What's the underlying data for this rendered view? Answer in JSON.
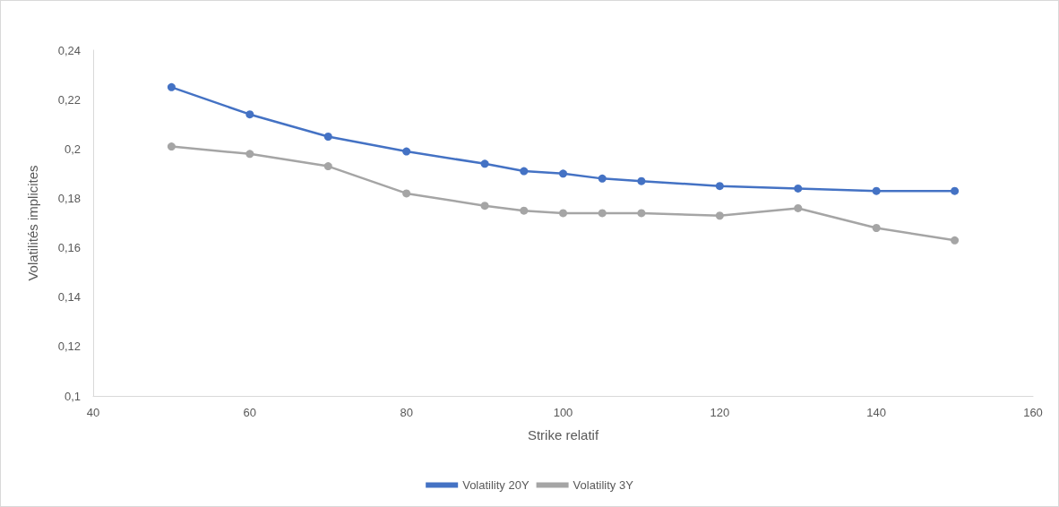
{
  "chart_data": {
    "type": "line",
    "xlabel": "Strike relatif",
    "ylabel": "Volatilités implicites",
    "x": [
      50,
      60,
      70,
      80,
      90,
      95,
      100,
      105,
      110,
      120,
      130,
      140,
      150
    ],
    "series": [
      {
        "name": "Volatility 20Y",
        "color": "#4472c4",
        "values": [
          0.225,
          0.214,
          0.205,
          0.199,
          0.194,
          0.191,
          0.19,
          0.188,
          0.187,
          0.185,
          0.184,
          0.183,
          0.183
        ]
      },
      {
        "name": "Volatility 3Y",
        "color": "#a5a5a5",
        "values": [
          0.201,
          0.198,
          0.193,
          0.182,
          0.177,
          0.175,
          0.174,
          0.174,
          0.174,
          0.173,
          0.176,
          0.168,
          0.163
        ]
      }
    ],
    "xlim": [
      40,
      160
    ],
    "xticks": [
      40,
      60,
      80,
      100,
      120,
      140,
      160
    ],
    "ylim": [
      0.1,
      0.24
    ],
    "yticks": [
      {
        "value": 0.1,
        "label": "0,1"
      },
      {
        "value": 0.12,
        "label": "0,12"
      },
      {
        "value": 0.14,
        "label": "0,14"
      },
      {
        "value": 0.16,
        "label": "0,16"
      },
      {
        "value": 0.18,
        "label": "0,18"
      },
      {
        "value": 0.2,
        "label": "0,2"
      },
      {
        "value": 0.22,
        "label": "0,22"
      },
      {
        "value": 0.24,
        "label": "0,24"
      }
    ],
    "grid": false,
    "legend": "bottom",
    "marker": "circle",
    "line_style": "solid"
  }
}
